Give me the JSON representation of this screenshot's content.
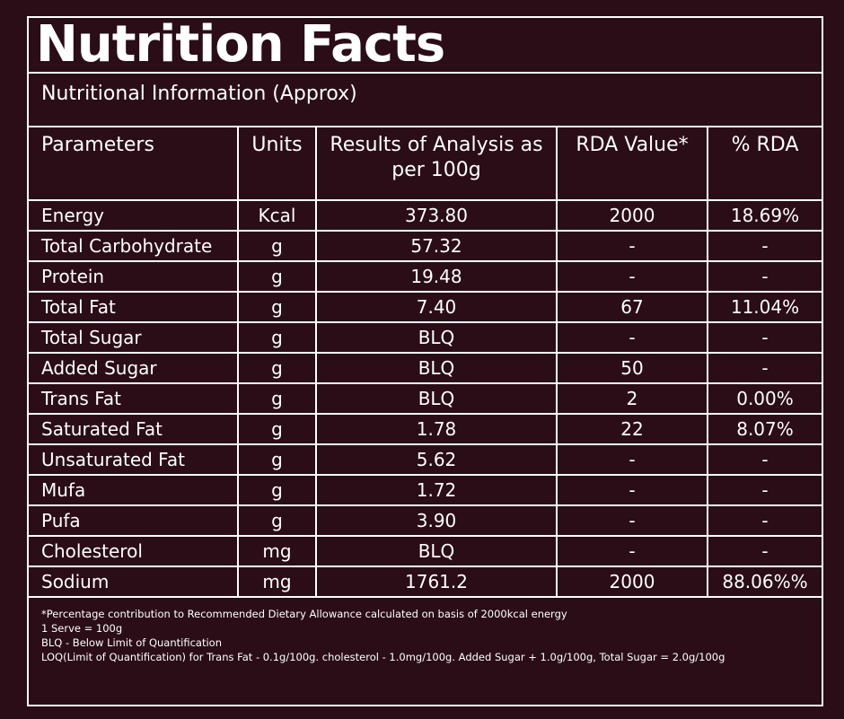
{
  "header": {
    "title": "Nutrition Facts",
    "subtitle": "Nutritional Information (Approx)"
  },
  "table": {
    "columns": [
      "Parameters",
      "Units",
      "Results of Analysis as per 100g",
      "RDA Value*",
      "% RDA"
    ],
    "rows": [
      [
        "Energy",
        "Kcal",
        "373.80",
        "2000",
        "18.69%"
      ],
      [
        "Total Carbohydrate",
        "g",
        "57.32",
        "-",
        "-"
      ],
      [
        "Protein",
        "g",
        "19.48",
        "-",
        "-"
      ],
      [
        "Total Fat",
        "g",
        "7.40",
        "67",
        "11.04%"
      ],
      [
        "Total Sugar",
        "g",
        "BLQ",
        "-",
        "-"
      ],
      [
        "Added Sugar",
        "g",
        "BLQ",
        "50",
        "-"
      ],
      [
        "Trans Fat",
        "g",
        "BLQ",
        "2",
        "0.00%"
      ],
      [
        "Saturated Fat",
        "g",
        "1.78",
        "22",
        "8.07%"
      ],
      [
        "Unsaturated Fat",
        "g",
        "5.62",
        "-",
        "-"
      ],
      [
        "Mufa",
        "g",
        "1.72",
        "-",
        "-"
      ],
      [
        "Pufa",
        "g",
        "3.90",
        "-",
        "-"
      ],
      [
        "Cholesterol",
        "mg",
        "BLQ",
        "-",
        "-"
      ],
      [
        "Sodium",
        "mg",
        "1761.2",
        "2000",
        "88.06%%"
      ]
    ]
  },
  "footnotes": [
    "*Percentage contribution to Recommended Dietary Allowance calculated on basis of 2000kcal energy",
    "1 Serve = 100g",
    "BLQ - Below Limit of Quantification",
    "LOQ(Limit of Quantification) for Trans Fat - 0.1g/100g. cholesterol - 1.0mg/100g. Added Sugar + 1.0g/100g, Total Sugar = 2.0g/100g"
  ]
}
